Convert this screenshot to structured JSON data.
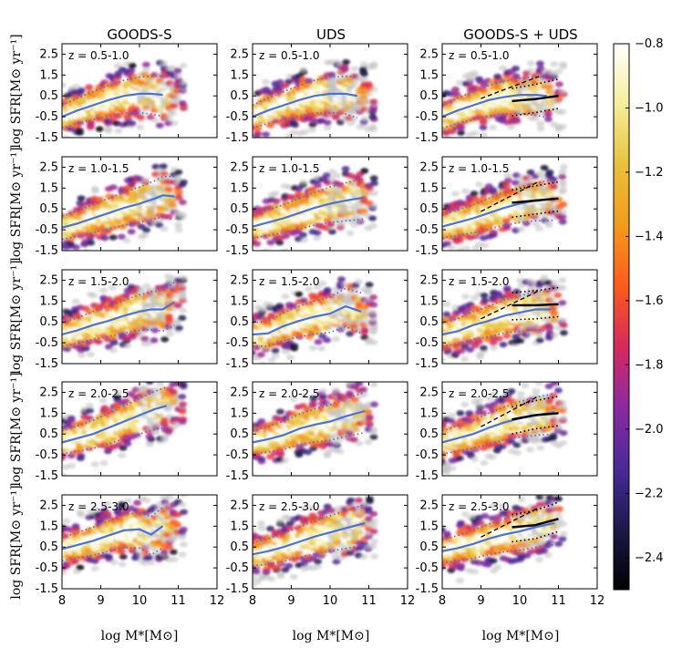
{
  "chart_data": {
    "type": "heatmap",
    "columns": [
      "GOODS-S",
      "UDS",
      "GOODS-S + UDS"
    ],
    "rows": [
      "z = 0.5-1.0",
      "z = 1.0-1.5",
      "z = 1.5-2.0",
      "z = 2.0-2.5",
      "z = 2.5-3.0"
    ],
    "xlabel": "log M*[M⊙]",
    "ylabel": "log SFR[M⊙ yr⁻¹]",
    "xlim": [
      8,
      12
    ],
    "ylim": [
      -1.5,
      3.0
    ],
    "xticks": [
      "8",
      "9",
      "10",
      "11",
      "12"
    ],
    "yticks": [
      "-1.5",
      "-0.5",
      "0.5",
      "1.5",
      "2.5"
    ],
    "colorbar": {
      "range": [
        -2.5,
        -0.8
      ],
      "ticks": [
        "−0.8",
        "−1.0",
        "−1.2",
        "−1.4",
        "−1.6",
        "−1.8",
        "−2.0",
        "−2.2",
        "−2.4"
      ],
      "colors": [
        "#000000",
        "#1a1a4a",
        "#4a2a9a",
        "#8a2aa0",
        "#d6295e",
        "#ff5a1a",
        "#f39a1a",
        "#e8c13a",
        "#f5ee9a",
        "#ffffff"
      ]
    },
    "x_bins": [
      8.2,
      8.6,
      9.0,
      9.4,
      9.8,
      10.2,
      10.6,
      11.0
    ],
    "median_lines": {
      "color": "#4a72d8",
      "series": [
        [
          {
            "x": [
              8.0,
              8.4,
              8.8,
              9.2,
              9.6,
              10.0,
              10.3,
              10.6
            ],
            "y": [
              -0.5,
              -0.2,
              0.05,
              0.3,
              0.5,
              0.6,
              0.6,
              0.55
            ]
          },
          {
            "x": [
              8.0,
              8.4,
              8.8,
              9.2,
              9.6,
              10.0,
              10.4,
              10.7
            ],
            "y": [
              -0.5,
              -0.2,
              0.05,
              0.3,
              0.5,
              0.6,
              0.6,
              0.5
            ]
          },
          {
            "x": [
              8.0,
              8.4,
              8.8,
              9.2,
              9.6,
              10.0,
              10.4,
              10.7
            ],
            "y": [
              -0.5,
              -0.2,
              0.05,
              0.3,
              0.45,
              0.55,
              0.55,
              0.5
            ]
          }
        ],
        [
          {
            "x": [
              8.0,
              8.4,
              8.8,
              9.2,
              9.6,
              10.0,
              10.4,
              10.6,
              10.9
            ],
            "y": [
              -0.4,
              -0.2,
              0.05,
              0.3,
              0.55,
              0.75,
              1.0,
              1.15,
              1.1
            ]
          },
          {
            "x": [
              8.0,
              8.4,
              8.8,
              9.2,
              9.6,
              10.0,
              10.4,
              10.9
            ],
            "y": [
              -0.35,
              -0.15,
              0.05,
              0.3,
              0.55,
              0.75,
              0.9,
              1.05
            ]
          },
          {
            "x": [
              8.0,
              8.4,
              8.8,
              9.2,
              9.6,
              10.0,
              10.4,
              10.9
            ],
            "y": [
              -0.35,
              -0.15,
              0.05,
              0.3,
              0.55,
              0.75,
              0.9,
              1.0
            ]
          }
        ],
        [
          {
            "x": [
              8.0,
              8.4,
              8.8,
              9.2,
              9.6,
              10.0,
              10.3,
              10.6,
              10.9
            ],
            "y": [
              -0.1,
              0.1,
              0.35,
              0.55,
              0.8,
              1.0,
              1.1,
              1.1,
              1.45
            ]
          },
          {
            "x": [
              8.0,
              8.4,
              8.8,
              9.2,
              9.6,
              10.0,
              10.4,
              10.8
            ],
            "y": [
              -0.1,
              -0.05,
              0.3,
              0.55,
              0.75,
              0.9,
              1.25,
              1.0
            ]
          },
          {
            "x": [
              8.0,
              8.4,
              8.8,
              9.2,
              9.6,
              10.0,
              10.4,
              10.8
            ],
            "y": [
              -0.1,
              0.05,
              0.35,
              0.55,
              0.8,
              0.95,
              1.1,
              1.1
            ]
          }
        ],
        [
          {
            "x": [
              8.0,
              8.4,
              8.8,
              9.2,
              9.6,
              10.0,
              10.4,
              10.7
            ],
            "y": [
              0.1,
              0.3,
              0.5,
              0.8,
              1.1,
              1.4,
              1.7,
              1.85
            ]
          },
          {
            "x": [
              8.0,
              8.4,
              8.8,
              9.2,
              9.6,
              10.0,
              10.4,
              10.9
            ],
            "y": [
              0.1,
              0.25,
              0.45,
              0.75,
              0.95,
              1.1,
              1.35,
              1.6
            ]
          },
          {
            "x": [
              8.0,
              8.4,
              8.8,
              9.2,
              9.6,
              10.0,
              10.4,
              10.9
            ],
            "y": [
              0.1,
              0.3,
              0.5,
              0.8,
              1.05,
              1.25,
              1.4,
              1.55
            ]
          }
        ],
        [
          {
            "x": [
              8.0,
              8.4,
              8.8,
              9.2,
              9.6,
              10.0,
              10.3,
              10.6
            ],
            "y": [
              0.4,
              0.6,
              0.8,
              1.05,
              1.3,
              1.35,
              1.1,
              1.5
            ]
          },
          {
            "x": [
              8.0,
              8.4,
              8.8,
              9.2,
              9.6,
              10.0,
              10.4,
              10.9
            ],
            "y": [
              0.15,
              0.3,
              0.5,
              0.75,
              1.0,
              1.2,
              1.4,
              1.65
            ]
          },
          {
            "x": [
              8.0,
              8.4,
              8.8,
              9.2,
              9.6,
              10.0,
              10.4,
              10.9
            ],
            "y": [
              0.3,
              0.45,
              0.65,
              0.9,
              1.1,
              1.25,
              1.45,
              1.65
            ]
          }
        ]
      ]
    },
    "black_fits": [
      {
        "x": [
          9.8,
          10.4,
          11.0
        ],
        "y": [
          0.25,
          0.35,
          0.5
        ]
      },
      {
        "x": [
          9.8,
          10.4,
          11.0
        ],
        "y": [
          0.8,
          0.9,
          1.0
        ]
      },
      {
        "x": [
          9.8,
          10.4,
          11.0
        ],
        "y": [
          1.3,
          1.3,
          1.35
        ]
      },
      {
        "x": [
          9.8,
          10.4,
          11.0
        ],
        "y": [
          1.2,
          1.4,
          1.5
        ]
      },
      {
        "x": [
          9.8,
          10.4,
          11.0
        ],
        "y": [
          1.45,
          1.55,
          1.85
        ]
      }
    ]
  }
}
